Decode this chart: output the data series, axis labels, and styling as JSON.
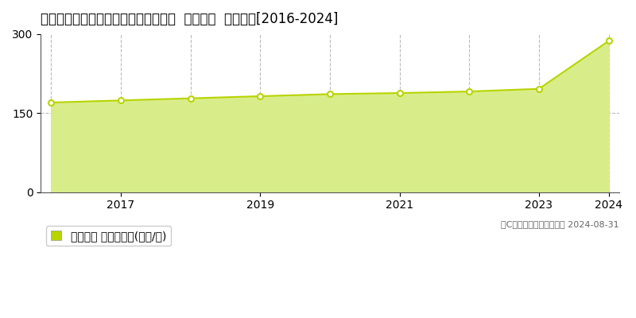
{
  "title": "東京都目黒区大岡山１丁目８６番１８  地価公示  地価推移[2016-2024]",
  "years": [
    2016,
    2017,
    2018,
    2019,
    2020,
    2021,
    2022,
    2023,
    2024
  ],
  "values": [
    170,
    174,
    178,
    182,
    186,
    188,
    191,
    196,
    287
  ],
  "line_color": "#b8d400",
  "fill_color": "#d8ed8a",
  "marker_color": "#ffffff",
  "marker_edge_color": "#b8d400",
  "ylim": [
    0,
    300
  ],
  "yticks": [
    0,
    150,
    300
  ],
  "xlim_left": 2015.85,
  "xlim_right": 2024.15,
  "background_color": "#ffffff",
  "legend_label": "地価公示 平均嵪単価(万円/嵪)",
  "copyright_text": "（C）土地価格ドットコム 2024-08-31",
  "grid_color": "#bbbbbb",
  "axis_color": "#555555",
  "title_fontsize": 12,
  "tick_fontsize": 10,
  "legend_fontsize": 10,
  "copyright_fontsize": 8,
  "xticks": [
    2017,
    2019,
    2021,
    2023,
    2024
  ]
}
